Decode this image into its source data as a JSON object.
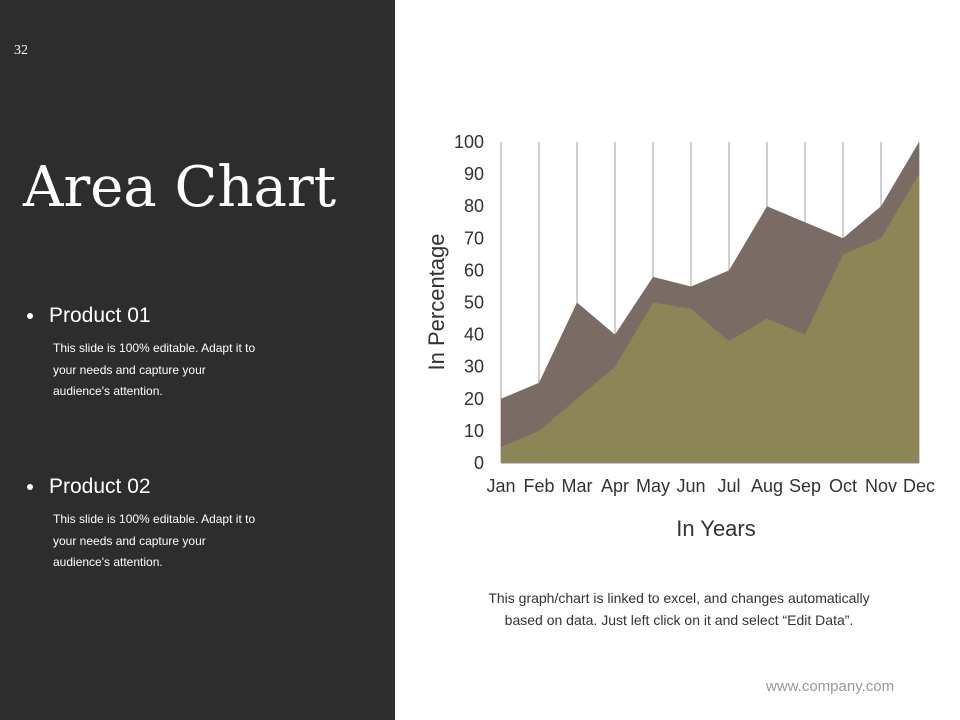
{
  "slide": {
    "number": "32",
    "title": "Area Chart",
    "website": "www.company.com",
    "footnote_line1": "This graph/chart is linked to excel, and changes automatically",
    "footnote_line2": "based on data. Just left click on it and select “Edit Data”."
  },
  "products": [
    {
      "heading": "Product 01",
      "desc_line1": "This slide is 100% editable. Adapt it to",
      "desc_line2": "your needs and capture your",
      "desc_line3": "audience's attention."
    },
    {
      "heading": "Product 02",
      "desc_line1": "This slide is 100% editable. Adapt it to",
      "desc_line2": "your needs and capture your",
      "desc_line3": "audience's attention."
    }
  ],
  "colors": {
    "panel": "#2d2d2d",
    "series_back": "#7a6b64",
    "series_front": "#8c8555"
  },
  "chart_data": {
    "type": "area",
    "xlabel": "In Years",
    "ylabel": "In Percentage",
    "ylim": [
      0,
      100
    ],
    "yticks": [
      0,
      10,
      20,
      30,
      40,
      50,
      60,
      70,
      80,
      90,
      100
    ],
    "categories": [
      "Jan",
      "Feb",
      "Mar",
      "Apr",
      "May",
      "Jun",
      "Jul",
      "Aug",
      "Sep",
      "Oct",
      "Nov",
      "Dec"
    ],
    "grid": "vertical",
    "series": [
      {
        "values": [
          20,
          25,
          50,
          40,
          58,
          55,
          60,
          80,
          75,
          70,
          80,
          100
        ]
      },
      {
        "values": [
          5,
          10,
          20,
          30,
          50,
          48,
          38,
          45,
          40,
          65,
          70,
          90
        ]
      }
    ]
  }
}
